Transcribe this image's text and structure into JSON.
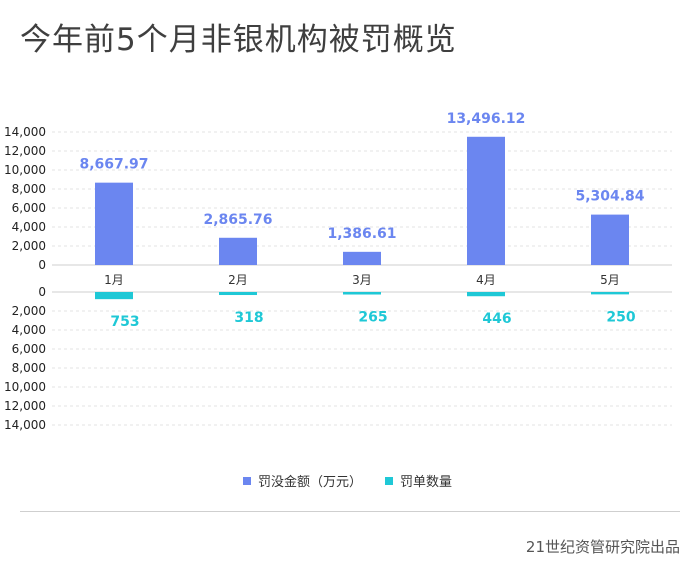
{
  "title": "今年前5个月非银机构被罚概览",
  "source": "21世纪资管研究院出品",
  "chart_data": {
    "type": "bar",
    "categories": [
      "1月",
      "2月",
      "3月",
      "4月",
      "5月"
    ],
    "series": [
      {
        "name": "罚没金额（万元）",
        "values": [
          8667.97,
          2865.76,
          1386.61,
          13496.12,
          5304.84
        ],
        "labels": [
          "8,667.97",
          "2,865.76",
          "1,386.61",
          "13,496.12",
          "5,304.84"
        ],
        "color": "#6b86f0"
      },
      {
        "name": "罚单数量",
        "values": [
          753,
          318,
          265,
          446,
          250
        ],
        "labels": [
          "753",
          "318",
          "265",
          "446",
          "250"
        ],
        "color": "#1fc8d6"
      }
    ],
    "upper_axis": {
      "ylim": [
        0,
        14000
      ],
      "ticks": [
        "0",
        "2,000",
        "4,000",
        "6,000",
        "8,000",
        "10,000",
        "12,000",
        "14,000"
      ]
    },
    "lower_axis": {
      "ylim": [
        0,
        14000
      ],
      "ticks": [
        "0",
        "2,000",
        "4,000",
        "6,000",
        "8,000",
        "10,000",
        "12,000",
        "14,000"
      ]
    },
    "grid": true,
    "legend_position": "bottom"
  }
}
